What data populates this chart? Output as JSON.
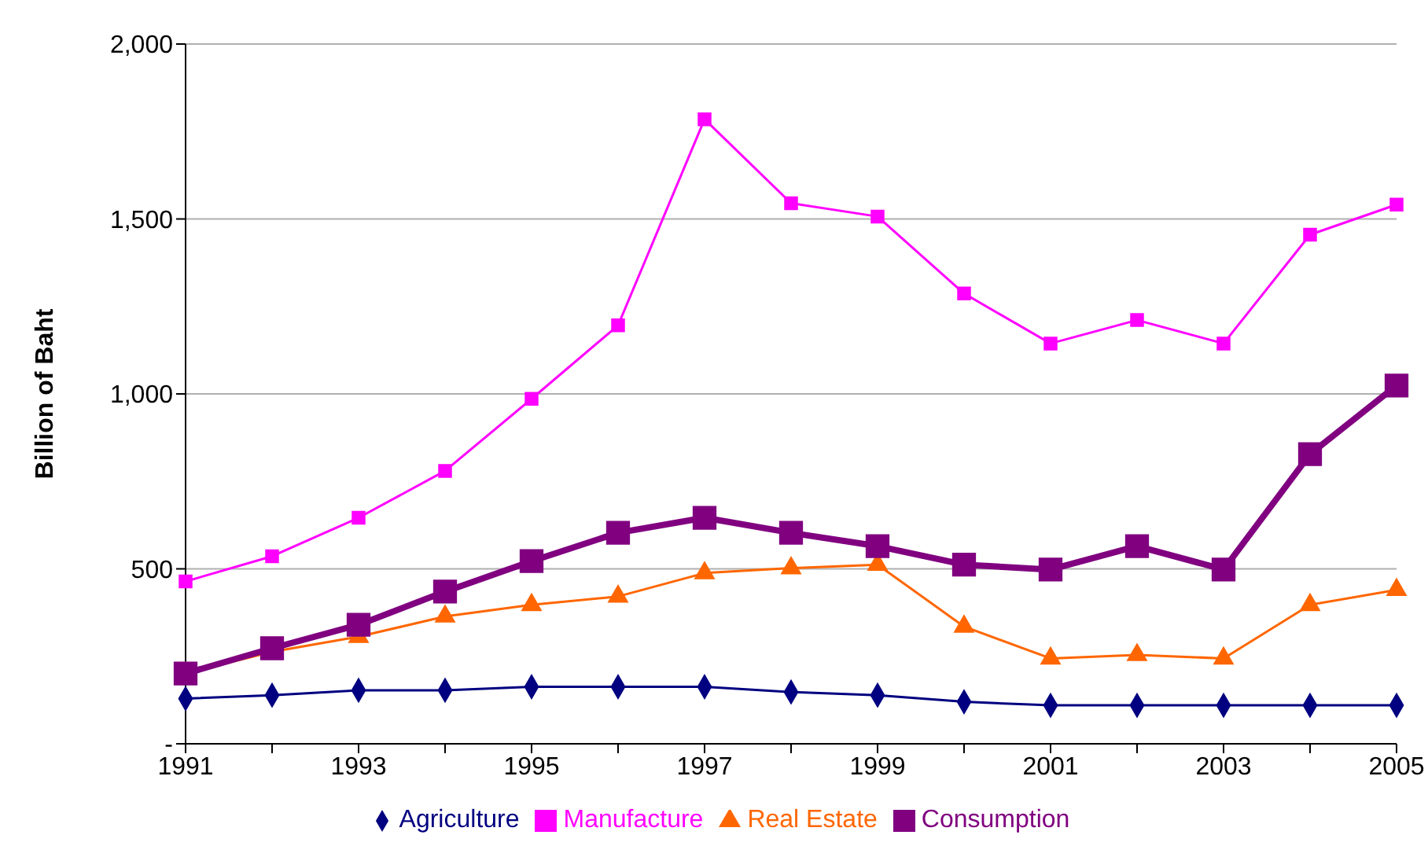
{
  "chart_data": {
    "type": "line",
    "ylabel": "Billion of Baht",
    "categories": [
      "1991",
      null,
      "1993",
      null,
      "1995",
      null,
      "1997",
      null,
      "1999",
      null,
      "2001",
      null,
      "2003",
      null,
      "2005"
    ],
    "series": [
      {
        "name": "Agriculture",
        "color": "#000080",
        "marker": "diamond",
        "values": [
          129,
          139,
          153,
          153,
          163,
          163,
          163,
          148,
          139,
          120,
          110,
          110,
          110,
          110,
          110
        ]
      },
      {
        "name": "Manufacture",
        "color": "#ff00ff",
        "marker": "square",
        "values": [
          464,
          536,
          646,
          780,
          986,
          1196,
          1785,
          1545,
          1507,
          1287,
          1144,
          1211,
          1144,
          1455,
          1541
        ]
      },
      {
        "name": "Real Estate",
        "color": "#ff6600",
        "marker": "triangle",
        "values": [
          201,
          263,
          306,
          364,
          397,
          421,
          488,
          502,
          512,
          335,
          244,
          254,
          244,
          397,
          440
        ]
      },
      {
        "name": "Consumption",
        "color": "#800080",
        "marker": "square",
        "values": [
          201,
          273,
          340,
          435,
          522,
          603,
          646,
          603,
          565,
          512,
          498,
          565,
          498,
          828,
          1024
        ]
      }
    ],
    "ylim": [
      0,
      2000
    ],
    "yticks": [
      {
        "value": 0,
        "label": "-"
      },
      500,
      {
        "value": 1000,
        "label": "1,000"
      },
      {
        "value": 1500,
        "label": "1,500"
      },
      {
        "value": 2000,
        "label": "2,000"
      }
    ],
    "grid": "y",
    "legend": "bottom"
  }
}
